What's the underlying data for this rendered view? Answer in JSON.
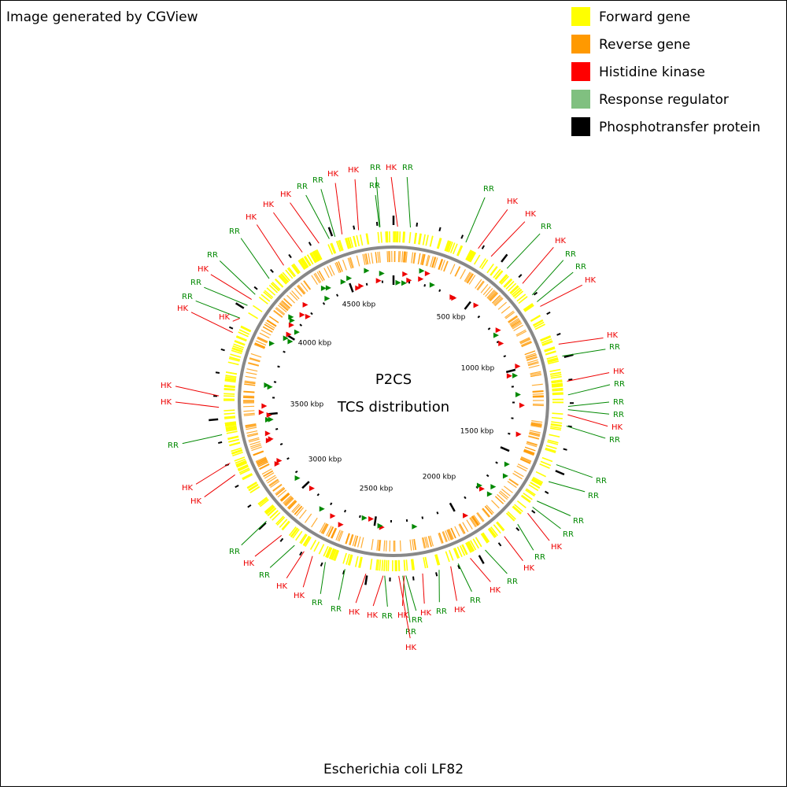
{
  "header": {
    "title": "Image generated by CGView"
  },
  "legend": [
    {
      "label": "Forward gene",
      "color": "#ffff00"
    },
    {
      "label": "Reverse gene",
      "color": "#ff9900"
    },
    {
      "label": "Histidine kinase",
      "color": "#ff0000"
    },
    {
      "label": "Response regulator",
      "color": "#80c080"
    },
    {
      "label": "Phosphotransfer protein",
      "color": "#000000"
    }
  ],
  "center": {
    "line1": "P2CS",
    "line2": "TCS distribution"
  },
  "scale_labels": [
    "500 kbp",
    "1000 kbp",
    "1500 kbp",
    "2000 kbp",
    "2500 kbp",
    "3000 kbp",
    "3500 kbp",
    "4000 kbp",
    "4500 kbp"
  ],
  "feature_labels": [
    "RR",
    "HK",
    "RR",
    "RR",
    "HK",
    "HK",
    "RR",
    "HK",
    "RR",
    "RR",
    "HK",
    "HK",
    "RR",
    "HK",
    "RR",
    "RR",
    "RR",
    "HK",
    "RR",
    "RR",
    "RR",
    "RR",
    "RR",
    "HK",
    "RR",
    "HK",
    "RR",
    "HK",
    "RR",
    "HK",
    "RR",
    "HK",
    "RR",
    "HK",
    "RR",
    "HK",
    "HK",
    "HK",
    "RR",
    "RR",
    "HK",
    "HK",
    "RR",
    "HK",
    "RR",
    "HK",
    "HK",
    "RR",
    "HK",
    "HK",
    "HK",
    "RR",
    "RR",
    "HK",
    "RR",
    "RR",
    "HK",
    "HK",
    "HK",
    "RR",
    "RR",
    "HK",
    "HK",
    "RR",
    "RR",
    "HK"
  ],
  "footer": {
    "organism": "Escherichia coli LF82"
  }
}
